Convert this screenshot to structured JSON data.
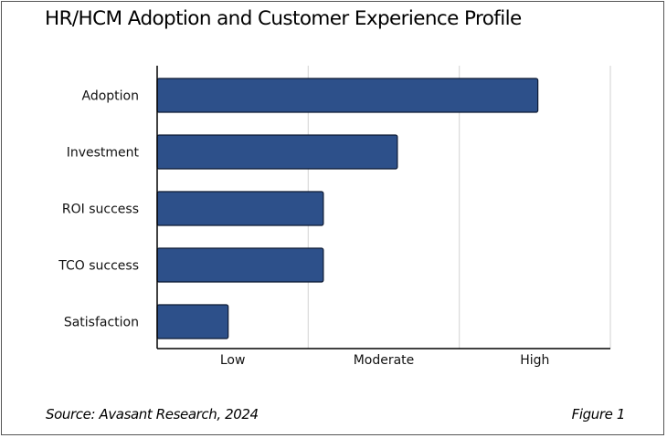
{
  "header": {
    "title": "HR/HCM Adoption and Customer Experience Profile"
  },
  "footer": {
    "source": "Source: Avasant Research, 2024",
    "figure": "Figure 1"
  },
  "colors": {
    "bar_fill": "#2d508a",
    "bar_stroke": "#0d1a33",
    "grid": "#d9d9d9",
    "axis": "#000000"
  },
  "chart_data": {
    "type": "bar",
    "orientation": "horizontal",
    "title": "HR/HCM Adoption and Customer Experience Profile",
    "categories": [
      "Adoption",
      "Investment",
      "ROI success",
      "TCO success",
      "Satisfaction"
    ],
    "values": [
      2.52,
      1.59,
      1.1,
      1.1,
      0.47
    ],
    "xlim": [
      0,
      3
    ],
    "x_tick_labels": [
      "Low",
      "Moderate",
      "High"
    ],
    "xlabel": "",
    "ylabel": "",
    "grid": true
  }
}
